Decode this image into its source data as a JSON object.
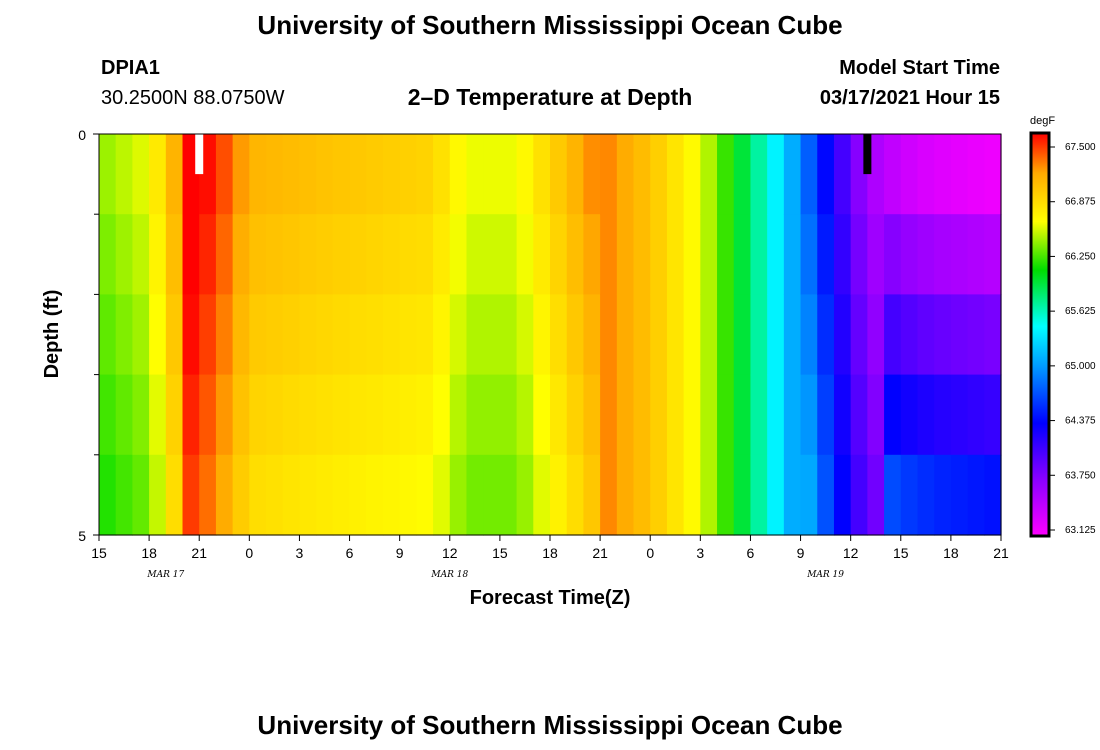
{
  "header": {
    "title": "University of Southern Mississippi Ocean Cube",
    "station_id": "DPIA1",
    "station_coords": "30.2500N 88.0750W",
    "plot_title": "2–D Temperature at Depth",
    "model_start_label": "Model Start Time",
    "model_start_value": "03/17/2021 Hour 15"
  },
  "footer": {
    "title": "University of Southern Mississippi Ocean Cube"
  },
  "colors": {
    "scale": [
      "#ff00ff",
      "#8a00ff",
      "#0000ff",
      "#0099ff",
      "#00ffff",
      "#00dd00",
      "#ffff00",
      "#ffaa00",
      "#ff0000"
    ]
  },
  "chart_data": {
    "type": "heatmap",
    "title": "2–D Temperature at Depth",
    "xlabel": "Forecast Time(Z)",
    "ylabel": "Depth (ft)",
    "x_tick_labels": [
      "15",
      "18",
      "21",
      "0",
      "3",
      "6",
      "9",
      "12",
      "15",
      "18",
      "21",
      "0",
      "3",
      "6",
      "9",
      "12",
      "15",
      "18",
      "21"
    ],
    "x_hours_from_start": [
      0,
      3,
      6,
      9,
      12,
      15,
      18,
      21,
      24,
      27,
      30,
      33,
      36,
      39,
      42,
      45,
      48,
      51,
      54
    ],
    "date_labels": [
      {
        "text": "MAR 17",
        "hour": 4
      },
      {
        "text": "MAR 18",
        "hour": 21
      },
      {
        "text": "MAR 19",
        "hour": 43.5
      }
    ],
    "ylim": [
      0,
      5
    ],
    "y_tick_labels": [
      "0",
      "5"
    ],
    "y_minor_ticks": [
      1,
      2,
      3,
      4
    ],
    "depth_levels": [
      0,
      1,
      2,
      3,
      4,
      5
    ],
    "colorbar": {
      "unit": "degF",
      "min": 63.125,
      "max": 67.5,
      "labels": [
        "67.500",
        "66.875",
        "66.250",
        "65.625",
        "65.000",
        "64.375",
        "63.750",
        "63.125"
      ]
    },
    "temperature_profile_surface_by_hour": [
      {
        "hour": 0,
        "value": 66.3
      },
      {
        "hour": 3,
        "value": 66.5
      },
      {
        "hour": 4.5,
        "value": 67.0
      },
      {
        "hour": 5.5,
        "value": 67.6
      },
      {
        "hour": 7,
        "value": 67.4
      },
      {
        "hour": 9,
        "value": 67.0
      },
      {
        "hour": 14,
        "value": 66.9
      },
      {
        "hour": 20,
        "value": 66.8
      },
      {
        "hour": 22,
        "value": 66.5
      },
      {
        "hour": 25,
        "value": 66.5
      },
      {
        "hour": 27,
        "value": 66.8
      },
      {
        "hour": 30,
        "value": 67.2
      },
      {
        "hour": 33,
        "value": 66.9
      },
      {
        "hour": 36,
        "value": 66.5
      },
      {
        "hour": 38,
        "value": 66.0
      },
      {
        "hour": 40,
        "value": 65.5
      },
      {
        "hour": 42,
        "value": 64.9
      },
      {
        "hour": 44,
        "value": 64.2
      },
      {
        "hour": 46,
        "value": 63.6
      },
      {
        "hour": 48,
        "value": 63.4
      },
      {
        "hour": 50,
        "value": 63.3
      },
      {
        "hour": 54,
        "value": 63.2
      }
    ],
    "markers": [
      {
        "hour": 6,
        "color": "#ffffff",
        "depth_range": [
          0,
          0.5
        ]
      },
      {
        "hour": 46,
        "color": "#000000",
        "depth_range": [
          0,
          0.5
        ]
      }
    ]
  }
}
